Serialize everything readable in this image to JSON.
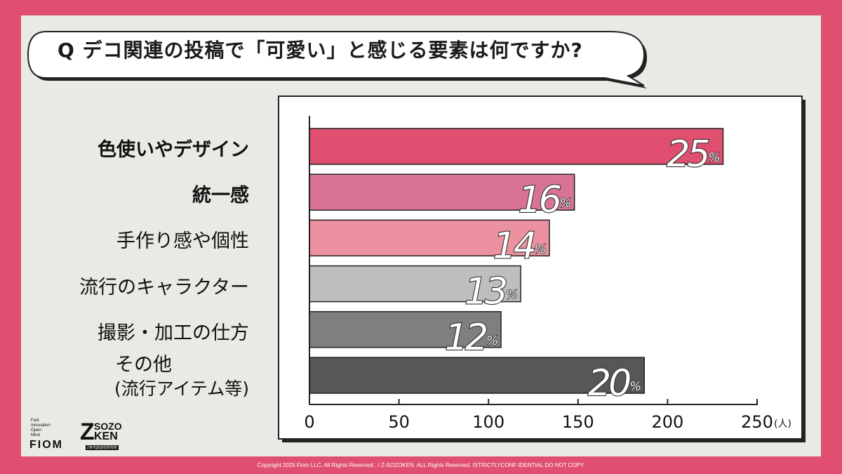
{
  "question": "Q デコ関連の投稿で「可愛い」と感じる要素は何ですか?",
  "chart_data": {
    "type": "bar",
    "orientation": "horizontal",
    "categories": [
      [
        "色使いやデザイン"
      ],
      [
        "統一感"
      ],
      [
        "手作り感や個性"
      ],
      [
        "流行のキャラクター"
      ],
      [
        "撮影・加工の仕方"
      ],
      [
        "その他",
        "(流行アイテム等)"
      ]
    ],
    "values": [
      231,
      148,
      134,
      118,
      107,
      187
    ],
    "percent_labels": [
      "25",
      "16",
      "14",
      "13",
      "12",
      "20"
    ],
    "percent_suffix": "%",
    "bar_colors": [
      "#e04f70",
      "#d97396",
      "#ec919f",
      "#bebebe",
      "#7f7f7f",
      "#575757"
    ],
    "bold_categories": [
      true,
      true,
      false,
      false,
      false,
      false
    ],
    "xlim": [
      0,
      250
    ],
    "xticks": [
      "0",
      "50",
      "100",
      "150",
      "200",
      "250"
    ],
    "xunit": "(人)",
    "grid": false
  },
  "brand": {
    "fiom_tagline": [
      "Fast",
      "Innovation",
      "Open",
      "Mind"
    ],
    "fiom": "FIOM",
    "z": "Z",
    "sozo": "SOZO",
    "ken": "KEN",
    "z_sub": "Z世代創造性研究所"
  },
  "footer": "Copyright 2025 Fiom LLC. All Rights Reserved . / Z-SOZOKEN. ALL Rights Reserved. ISTRICTLYCONF IDENTIAL DO NOT COPY.",
  "colors": {
    "frame": "#e04f70",
    "panel": "#e9eae4"
  }
}
